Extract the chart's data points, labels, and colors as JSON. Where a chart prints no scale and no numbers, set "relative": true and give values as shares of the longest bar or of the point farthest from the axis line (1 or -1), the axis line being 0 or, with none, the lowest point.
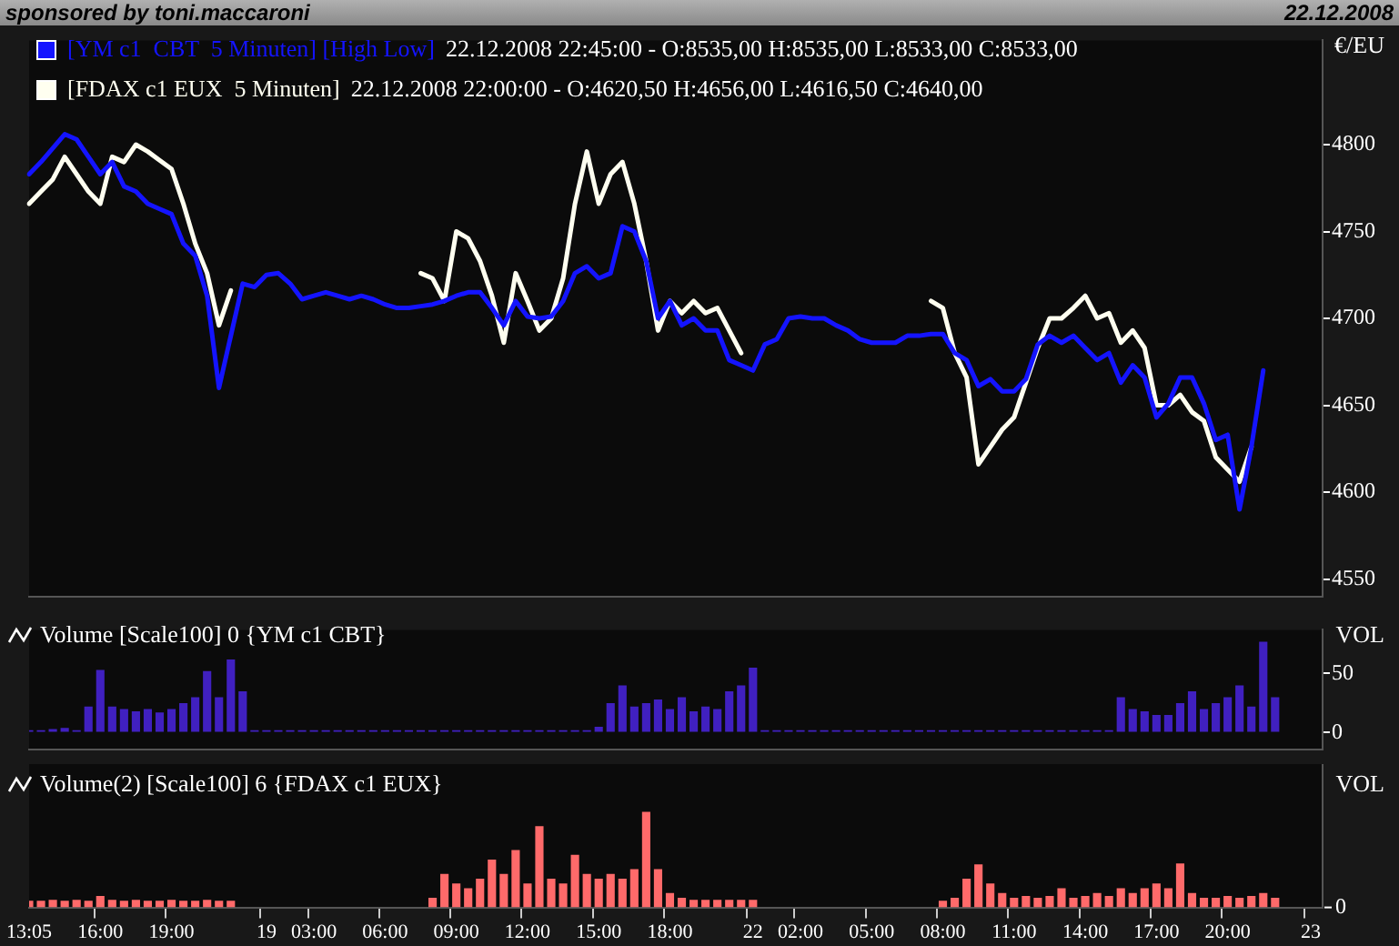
{
  "chart_data": [
    {
      "type": "line",
      "title": "sponsored by toni.maccaroni",
      "subtitle": "22.12.2008",
      "ylabel": "€/EU",
      "legend": "top left",
      "tick_labels": "y",
      "marker": "none",
      "categories": [
        null,
        null,
        null,
        null,
        null,
        null,
        null,
        null,
        null,
        null,
        null,
        null,
        null,
        null,
        null,
        null,
        null,
        null,
        null,
        null,
        null,
        null,
        null,
        null,
        null,
        null,
        null,
        null,
        null,
        null,
        null,
        null,
        null,
        null,
        null,
        null,
        null,
        null,
        null,
        null,
        null,
        null,
        null,
        null,
        null,
        null,
        null,
        null,
        null,
        null,
        null,
        null,
        null,
        null,
        null,
        null,
        null,
        null,
        null,
        null,
        null,
        null,
        null,
        null,
        null,
        null,
        null,
        null,
        null,
        null,
        null,
        null,
        null,
        null,
        null,
        null,
        null,
        null,
        null,
        null,
        null,
        null,
        null,
        null,
        null,
        null,
        null,
        null,
        null,
        null,
        null,
        null,
        null,
        null,
        null,
        null,
        null,
        null,
        null,
        null,
        null,
        null,
        null,
        null,
        null,
        null,
        null,
        null,
        null,
        null
      ],
      "series": [
        {
          "name": "[YM c1  CBT  5 Minuten] [High Low]",
          "color": "#1414ff",
          "values": [
            4783,
            4790,
            4798,
            4806,
            4803,
            4793,
            4783,
            4790,
            4776,
            4773,
            4766,
            4763,
            4760,
            4743,
            4736,
            4713,
            4660,
            4690,
            4720,
            4718,
            4725,
            4726,
            4720,
            4711,
            4713,
            4715,
            4713,
            4711,
            4713,
            4711,
            4708,
            4706,
            4706,
            4707,
            4708,
            4710,
            4713,
            4715,
            4715,
            4706,
            4696,
            4710,
            4701,
            4700,
            4701,
            4710,
            4726,
            4730,
            4723,
            4726,
            4753,
            4750,
            4733,
            4700,
            4710,
            4696,
            4700,
            4693,
            4693,
            4676,
            4673,
            4670,
            4685,
            4688,
            4700,
            4701,
            4700,
            4700,
            4696,
            4693,
            4688,
            4686,
            4686,
            4686,
            4690,
            4690,
            4691,
            4691,
            4680,
            4676,
            4661,
            4665,
            4658,
            4658,
            4665,
            4685,
            4690,
            4686,
            4690,
            4683,
            4676,
            4680,
            4663,
            4673,
            4666,
            4643,
            4651,
            4666,
            4666,
            4651,
            4630,
            4633,
            4590,
            4626,
            4670,
            null,
            null,
            null,
            null,
            null
          ]
        },
        {
          "name": "[FDAX c1 EUX  5 Minuten]",
          "color": "#fffff0",
          "values": [
            4766,
            4773,
            4780,
            4793,
            4783,
            4773,
            4766,
            4793,
            4790,
            4800,
            4796,
            4791,
            4786,
            4766,
            4743,
            4726,
            4696,
            4716,
            null,
            null,
            null,
            null,
            null,
            null,
            null,
            null,
            null,
            null,
            null,
            null,
            null,
            null,
            null,
            4726,
            4723,
            4710,
            4750,
            4746,
            4733,
            4713,
            4686,
            4726,
            4710,
            4693,
            4700,
            4723,
            4766,
            4796,
            4766,
            4783,
            4790,
            4766,
            4733,
            4693,
            4710,
            4703,
            4710,
            4703,
            4706,
            4693,
            4680,
            null,
            null,
            null,
            null,
            null,
            null,
            null,
            null,
            null,
            null,
            null,
            null,
            null,
            null,
            null,
            4710,
            4706,
            4680,
            4666,
            4616,
            4626,
            4636,
            4643,
            4663,
            4683,
            4700,
            4700,
            4706,
            4713,
            4700,
            4703,
            4686,
            4693,
            4683,
            4650,
            4650,
            4656,
            4646,
            4641,
            4620,
            4613,
            4606,
            4626,
            null,
            null,
            null,
            null,
            null,
            null
          ]
        }
      ],
      "annotations": [
        "22.12.2008 22:45:00 - O:8535,00 H:8535,00 L:8533,00 C:8533,00",
        "22.12.2008 22:00:00 - O:4620,50 H:4656,00 L:4616,50 C:4640,00"
      ],
      "ylim": [
        4540,
        4860
      ],
      "yticks": [
        4550,
        4600,
        4650,
        4700,
        4750,
        4800
      ]
    },
    {
      "type": "bar",
      "title": "Volume [Scale100] 0 {YM c1 CBT}",
      "ylabel": "VOL",
      "tick_labels": "y",
      "color": "#4020c0",
      "categories": [
        null,
        null,
        null,
        null,
        null,
        null,
        null,
        null,
        null,
        null,
        null,
        null,
        null,
        null,
        null,
        null,
        null,
        null,
        null,
        null,
        null,
        null,
        null,
        null,
        null,
        null,
        null,
        null,
        null,
        null,
        null,
        null,
        null,
        null,
        null,
        null,
        null,
        null,
        null,
        null,
        null,
        null,
        null,
        null,
        null,
        null,
        null,
        null,
        null,
        null,
        null,
        null,
        null,
        null,
        null,
        null,
        null,
        null,
        null,
        null,
        null,
        null,
        null,
        null,
        null,
        null,
        null,
        null,
        null,
        null,
        null,
        null,
        null,
        null,
        null,
        null,
        null,
        null,
        null,
        null,
        null,
        null,
        null,
        null,
        null,
        null,
        null,
        null,
        null,
        null,
        null,
        null,
        null,
        null,
        null,
        null,
        null,
        null,
        null,
        null,
        null,
        null,
        null,
        null,
        null,
        null,
        null,
        null,
        null,
        null
      ],
      "values": [
        2,
        2,
        3,
        4,
        2,
        22,
        53,
        22,
        20,
        18,
        20,
        17,
        20,
        25,
        30,
        52,
        30,
        62,
        35,
        2,
        2,
        2,
        2,
        2,
        2,
        2,
        2,
        2,
        2,
        2,
        2,
        2,
        2,
        2,
        2,
        2,
        2,
        2,
        2,
        2,
        2,
        2,
        2,
        2,
        2,
        2,
        2,
        2,
        5,
        25,
        40,
        22,
        25,
        28,
        20,
        30,
        18,
        22,
        20,
        35,
        40,
        55,
        2,
        2,
        2,
        2,
        2,
        2,
        2,
        2,
        2,
        2,
        2,
        2,
        2,
        2,
        2,
        2,
        2,
        2,
        2,
        2,
        2,
        2,
        2,
        2,
        2,
        2,
        2,
        2,
        2,
        2,
        30,
        20,
        18,
        15,
        15,
        25,
        35,
        20,
        25,
        30,
        40,
        22,
        77,
        30,
        null,
        null,
        null,
        null
      ],
      "ylim": [
        -14,
        87
      ],
      "yticks": [
        0,
        50
      ]
    },
    {
      "type": "bar",
      "title": "Volume(2) [Scale100] 6 {FDAX c1 EUX}",
      "ylabel": "VOL",
      "relative": true,
      "color": "#ff6a6a",
      "annotations": [
        "0"
      ],
      "categories": [
        "13:05",
        null,
        null,
        null,
        null,
        null,
        "16:00",
        null,
        null,
        null,
        null,
        null,
        "19:00",
        null,
        null,
        null,
        null,
        null,
        null,
        null,
        "19",
        null,
        null,
        null,
        "03:00",
        null,
        null,
        null,
        null,
        null,
        "06:00",
        null,
        null,
        null,
        null,
        null,
        "09:00",
        null,
        null,
        null,
        null,
        null,
        "12:00",
        null,
        null,
        null,
        null,
        null,
        "15:00",
        null,
        null,
        null,
        null,
        null,
        "18:00",
        null,
        null,
        null,
        null,
        null,
        null,
        "22",
        null,
        null,
        null,
        "02:00",
        null,
        null,
        null,
        null,
        null,
        "05:00",
        null,
        null,
        null,
        null,
        null,
        "08:00",
        null,
        null,
        null,
        null,
        null,
        "11:00",
        null,
        null,
        null,
        null,
        null,
        "14:00",
        null,
        null,
        null,
        null,
        null,
        "17:00",
        null,
        null,
        null,
        null,
        null,
        "20:00",
        null,
        null,
        null,
        null,
        null,
        null,
        "23",
        null
      ],
      "values": [
        0.07,
        0.07,
        0.08,
        0.07,
        0.08,
        0.07,
        0.12,
        0.08,
        0.07,
        0.08,
        0.07,
        0.07,
        0.08,
        0.07,
        0.07,
        0.08,
        0.07,
        0.07,
        null,
        null,
        null,
        null,
        null,
        null,
        null,
        null,
        null,
        null,
        null,
        null,
        null,
        null,
        null,
        null,
        0.1,
        0.35,
        0.25,
        0.2,
        0.3,
        0.5,
        0.35,
        0.6,
        0.25,
        0.85,
        0.3,
        0.25,
        0.55,
        0.35,
        0.3,
        0.35,
        0.3,
        0.4,
        1,
        0.4,
        0.15,
        0.1,
        0.08,
        0.08,
        0.08,
        0.08,
        0.08,
        0.08,
        null,
        null,
        null,
        null,
        null,
        null,
        null,
        null,
        null,
        null,
        null,
        null,
        null,
        null,
        null,
        0.07,
        0.1,
        0.3,
        0.45,
        0.25,
        0.15,
        0.1,
        0.12,
        0.1,
        0.12,
        0.2,
        0.1,
        0.12,
        0.15,
        0.12,
        0.2,
        0.15,
        0.2,
        0.25,
        0.2,
        0.46,
        0.15,
        0.1,
        0.1,
        0.12,
        0.1,
        0.12,
        0.15,
        0.1,
        null,
        null,
        null,
        null
      ]
    }
  ]
}
